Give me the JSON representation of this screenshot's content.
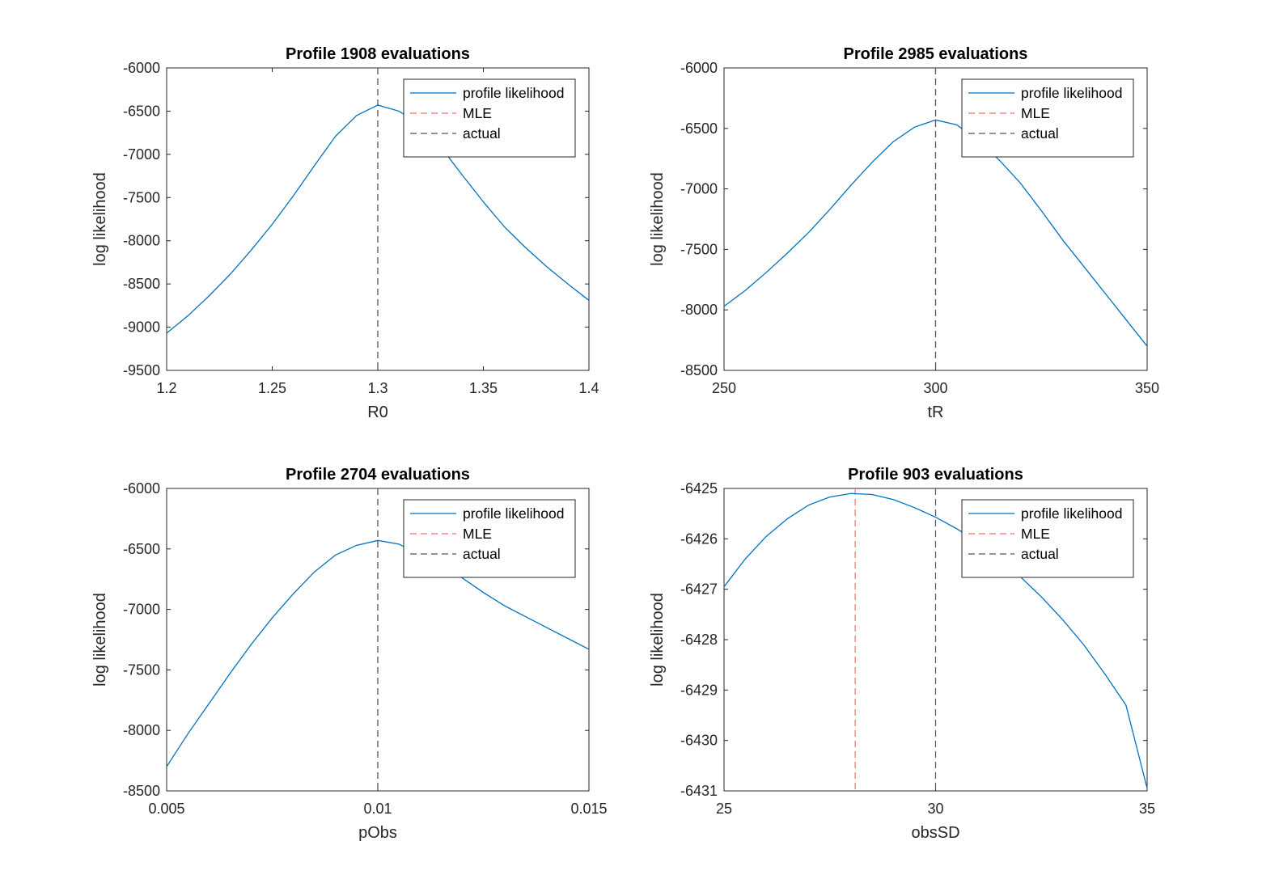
{
  "figure": {
    "background": "#ffffff",
    "colors": {
      "profile": "#0072BD",
      "mle": "#FF6B6B",
      "actual": "#555555",
      "axes": "#262626"
    }
  },
  "chart_data": [
    {
      "type": "line",
      "title": "Profile 1908 evaluations",
      "xlabel": "R0",
      "ylabel": "log likelihood",
      "xlim": [
        1.2,
        1.4
      ],
      "ylim": [
        -9500,
        -6000
      ],
      "xticks": [
        1.2,
        1.25,
        1.3,
        1.35,
        1.4
      ],
      "xtick_labels": [
        "1.2",
        "1.25",
        "1.3",
        "1.35",
        "1.4"
      ],
      "yticks": [
        -9500,
        -9000,
        -8500,
        -8000,
        -7500,
        -7000,
        -6500,
        -6000
      ],
      "ytick_labels": [
        "-9500",
        "-9000",
        "-8500",
        "-8000",
        "-7500",
        "-7000",
        "-6500",
        "-6000"
      ],
      "legend": {
        "location": "top-right",
        "entries": [
          "profile likelihood",
          "MLE",
          "actual"
        ]
      },
      "series": [
        {
          "name": "profile likelihood",
          "x": [
            1.2,
            1.21,
            1.22,
            1.23,
            1.24,
            1.25,
            1.26,
            1.27,
            1.28,
            1.29,
            1.3,
            1.31,
            1.32,
            1.33,
            1.34,
            1.35,
            1.36,
            1.37,
            1.38,
            1.39,
            1.4
          ],
          "y": [
            -9070,
            -8870,
            -8640,
            -8390,
            -8110,
            -7810,
            -7480,
            -7130,
            -6790,
            -6550,
            -6430,
            -6500,
            -6650,
            -6920,
            -7240,
            -7550,
            -7840,
            -8080,
            -8300,
            -8500,
            -8690
          ]
        }
      ],
      "vlines": [
        {
          "name": "MLE",
          "x": 1.3
        },
        {
          "name": "actual",
          "x": 1.3
        }
      ]
    },
    {
      "type": "line",
      "title": "Profile 2985 evaluations",
      "xlabel": "tR",
      "ylabel": "log likelihood",
      "xlim": [
        250,
        350
      ],
      "ylim": [
        -8500,
        -6000
      ],
      "xticks": [
        250,
        300,
        350
      ],
      "xtick_labels": [
        "250",
        "300",
        "350"
      ],
      "yticks": [
        -8500,
        -8000,
        -7500,
        -7000,
        -6500,
        -6000
      ],
      "ytick_labels": [
        "-8500",
        "-8000",
        "-7500",
        "-7000",
        "-6500",
        "-6000"
      ],
      "legend": {
        "location": "top-right",
        "entries": [
          "profile likelihood",
          "MLE",
          "actual"
        ]
      },
      "series": [
        {
          "name": "profile likelihood",
          "x": [
            250,
            255,
            260,
            265,
            270,
            275,
            280,
            285,
            290,
            295,
            300,
            305,
            310,
            315,
            320,
            325,
            330,
            335,
            340,
            345,
            350
          ],
          "y": [
            -7970,
            -7840,
            -7690,
            -7530,
            -7360,
            -7170,
            -6970,
            -6780,
            -6610,
            -6490,
            -6430,
            -6470,
            -6600,
            -6760,
            -6950,
            -7180,
            -7420,
            -7640,
            -7860,
            -8080,
            -8300
          ]
        }
      ],
      "vlines": [
        {
          "name": "MLE",
          "x": 300
        },
        {
          "name": "actual",
          "x": 300
        }
      ]
    },
    {
      "type": "line",
      "title": "Profile 2704 evaluations",
      "xlabel": "pObs",
      "ylabel": "log likelihood",
      "xlim": [
        0.005,
        0.015
      ],
      "ylim": [
        -8500,
        -6000
      ],
      "xticks": [
        0.005,
        0.01,
        0.015
      ],
      "xtick_labels": [
        "0.005",
        "0.01",
        "0.015"
      ],
      "yticks": [
        -8500,
        -8000,
        -7500,
        -7000,
        -6500,
        -6000
      ],
      "ytick_labels": [
        "-8500",
        "-8000",
        "-7500",
        "-7000",
        "-6500",
        "-6000"
      ],
      "legend": {
        "location": "top-right",
        "entries": [
          "profile likelihood",
          "MLE",
          "actual"
        ]
      },
      "series": [
        {
          "name": "profile likelihood",
          "x": [
            0.005,
            0.0055,
            0.006,
            0.0065,
            0.007,
            0.0075,
            0.008,
            0.0085,
            0.009,
            0.0095,
            0.01,
            0.0105,
            0.011,
            0.0115,
            0.012,
            0.0125,
            0.013,
            0.0135,
            0.014,
            0.0145,
            0.015
          ],
          "y": [
            -8300,
            -8030,
            -7780,
            -7530,
            -7290,
            -7070,
            -6870,
            -6690,
            -6550,
            -6470,
            -6430,
            -6460,
            -6550,
            -6640,
            -6740,
            -6860,
            -6970,
            -7060,
            -7150,
            -7240,
            -7330
          ]
        }
      ],
      "vlines": [
        {
          "name": "MLE",
          "x": 0.01
        },
        {
          "name": "actual",
          "x": 0.01
        }
      ]
    },
    {
      "type": "line",
      "title": "Profile 903 evaluations",
      "xlabel": "obsSD",
      "ylabel": "log likelihood",
      "xlim": [
        25,
        35
      ],
      "ylim": [
        -6431,
        -6425
      ],
      "xticks": [
        25,
        30,
        35
      ],
      "xtick_labels": [
        "25",
        "30",
        "35"
      ],
      "yticks": [
        -6431,
        -6430,
        -6429,
        -6428,
        -6427,
        -6426,
        -6425
      ],
      "ytick_labels": [
        "-6431",
        "-6430",
        "-6429",
        "-6428",
        "-6427",
        "-6426",
        "-6425"
      ],
      "legend": {
        "location": "top-right",
        "entries": [
          "profile likelihood",
          "MLE",
          "actual"
        ]
      },
      "series": [
        {
          "name": "profile likelihood",
          "x": [
            25,
            25.5,
            26,
            26.5,
            27,
            27.5,
            28,
            28.5,
            29,
            29.5,
            30,
            30.5,
            31,
            31.5,
            32,
            32.5,
            33,
            33.5,
            34,
            34.5,
            35
          ],
          "y": [
            -6426.95,
            -6426.4,
            -6425.95,
            -6425.6,
            -6425.33,
            -6425.17,
            -6425.1,
            -6425.12,
            -6425.22,
            -6425.38,
            -6425.57,
            -6425.8,
            -6426.07,
            -6426.38,
            -6426.75,
            -6427.15,
            -6427.6,
            -6428.1,
            -6428.68,
            -6429.3,
            -6430.95
          ]
        }
      ],
      "vlines": [
        {
          "name": "MLE",
          "x": 28.1
        },
        {
          "name": "actual",
          "x": 30
        }
      ]
    }
  ]
}
